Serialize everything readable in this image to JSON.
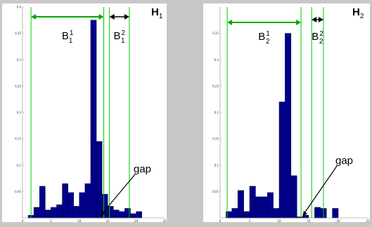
{
  "colors": {
    "background": "#c8c8c8",
    "panel": "#ffffff",
    "bar_fill": "#00008b",
    "bar_stroke": "#000033",
    "boundary_line": "#00cc00",
    "arrow": "#00aa00",
    "annotation": "#000000"
  },
  "chart_data": [
    {
      "type": "bar",
      "panel_label": {
        "main": "H",
        "sub": "1"
      },
      "x": [
        0,
        1,
        2,
        3,
        4,
        5,
        6,
        7,
        8,
        9,
        10,
        11,
        12,
        13,
        14,
        15,
        16,
        17,
        18,
        19,
        20,
        21,
        22,
        23,
        24
      ],
      "values": [
        0,
        0.005,
        0.02,
        0.06,
        0.015,
        0.02,
        0.025,
        0.065,
        0.048,
        0.022,
        0.048,
        0.065,
        0.375,
        0.145,
        0.045,
        0.022,
        0.015,
        0.012,
        0.018,
        0.008,
        0.012,
        0,
        0,
        0,
        0
      ],
      "xlim": [
        0,
        25
      ],
      "ylim": [
        0,
        0.4
      ],
      "xticks": [
        0,
        5,
        10,
        15,
        20,
        25
      ],
      "yticks": [
        0.05,
        0.1,
        0.15,
        0.2,
        0.25,
        0.3,
        0.35,
        0.4
      ],
      "ytick_labels": [
        "0,05",
        "0,1",
        "0,15",
        "0,2",
        "0,25",
        "0,3",
        "0,35",
        "0,4"
      ],
      "boundaries": [
        1.5,
        14.3,
        15.3,
        18.8
      ],
      "annotations": {
        "b1": {
          "main": "B",
          "sub": "1",
          "sup": "1"
        },
        "b2": {
          "main": "B",
          "sub": "1",
          "sup": "2"
        },
        "gap": "gap"
      }
    },
    {
      "type": "bar",
      "panel_label": {
        "main": "H",
        "sub": "2"
      },
      "x": [
        0,
        1,
        2,
        3,
        4,
        5,
        6,
        7,
        8,
        9,
        10,
        11,
        12,
        13,
        14,
        15,
        16,
        17,
        18,
        19,
        20,
        21,
        22,
        23,
        24
      ],
      "values": [
        0,
        0.012,
        0.018,
        0.052,
        0.012,
        0.06,
        0.04,
        0.04,
        0.048,
        0.018,
        0.22,
        0.35,
        0.08,
        0.002,
        0.005,
        0,
        0.02,
        0.018,
        0,
        0.018,
        0,
        0,
        0,
        0,
        0
      ],
      "xlim": [
        0,
        25
      ],
      "ylim": [
        0,
        0.4
      ],
      "xticks": [
        0,
        5,
        10,
        15,
        20,
        25
      ],
      "yticks": [
        0.05,
        0.1,
        0.15,
        0.2,
        0.25,
        0.3,
        0.35
      ],
      "ytick_labels": [
        "0,05",
        "0,1",
        "0,15",
        "0,2",
        "0,25",
        "0,3",
        "0,35"
      ],
      "boundaries": [
        1.2,
        13.7,
        15.5,
        17.5
      ],
      "annotations": {
        "b1": {
          "main": "B",
          "sub": "2",
          "sup": "1"
        },
        "b2": {
          "main": "B",
          "sub": "2",
          "sup": "2"
        },
        "gap": "gap"
      }
    }
  ]
}
